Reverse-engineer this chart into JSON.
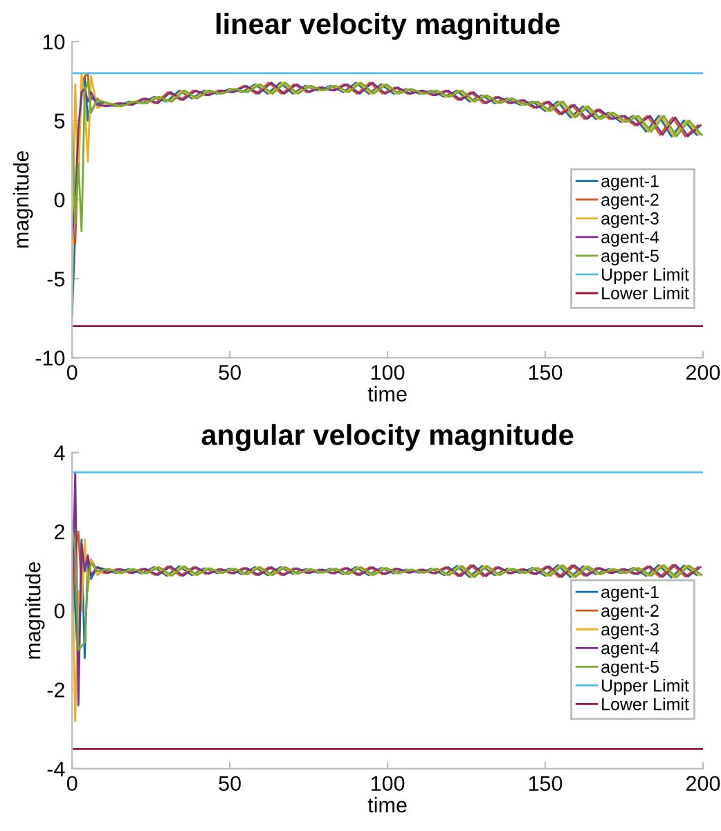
{
  "chart_data": [
    {
      "type": "line",
      "title": "linear velocity magnitude",
      "xlabel": "time",
      "ylabel": "magnitude",
      "xlim": [
        0,
        200
      ],
      "ylim": [
        -10,
        10
      ],
      "xticks": [
        0,
        50,
        100,
        150,
        200
      ],
      "yticks": [
        -10,
        -5,
        0,
        5,
        10
      ],
      "legend": "bottom right",
      "series": [
        {
          "name": "agent-1",
          "color": "#0072bd",
          "x": [
            0,
            1,
            2,
            3,
            4,
            5,
            6,
            8,
            10,
            14,
            18,
            22,
            26,
            30,
            34,
            38,
            42,
            46,
            50,
            54,
            58,
            62,
            66,
            70,
            74,
            78,
            82,
            86,
            90,
            94,
            98,
            102,
            106,
            110,
            114,
            118,
            122,
            126,
            130,
            134,
            138,
            142,
            146,
            150,
            154,
            158,
            162,
            166,
            170,
            174,
            178,
            182,
            186,
            190,
            194,
            198
          ],
          "values": [
            -7.3,
            -2,
            4,
            6.5,
            7.8,
            5,
            6.5,
            6.1,
            6.1,
            5.9,
            6.2,
            6.1,
            6.5,
            6.2,
            6.9,
            6.4,
            6.9,
            6.7,
            7.0,
            6.8,
            7.3,
            6.7,
            7.4,
            6.7,
            7.2,
            6.9,
            7.2,
            6.8,
            7.4,
            6.7,
            7.3,
            6.7,
            7.0,
            6.7,
            6.9,
            6.5,
            6.9,
            6.2,
            6.6,
            6.1,
            6.4,
            6.0,
            6.2,
            5.6,
            6.2,
            5.2,
            5.9,
            5.1,
            5.5,
            4.9,
            5.3,
            4.3,
            5.3,
            4.0,
            5.0,
            4.1
          ]
        },
        {
          "name": "agent-2",
          "color": "#d95319",
          "x": [
            0,
            1,
            2,
            3,
            4,
            5,
            6,
            8,
            10.4,
            14.4,
            18.4,
            22.4,
            26.4,
            30.4,
            34.4,
            38.4,
            42.4,
            46.4,
            50.4,
            54.4,
            58.4,
            62.4,
            66.4,
            70.4,
            74.4,
            78.4,
            82.4,
            86.4,
            90.4,
            94.4,
            98.4,
            102.4,
            106.4,
            110.4,
            114.4,
            118.4,
            122.4,
            126.4,
            130.4,
            134.4,
            138.4,
            142.4,
            146.4,
            150.4,
            154.4,
            158.4,
            162.4,
            166.4,
            170.4,
            174.4,
            178.4,
            182.4,
            186.4,
            190.4,
            194.4,
            198.4
          ],
          "values": [
            -2.5,
            -2.8,
            3,
            7,
            7.8,
            8,
            5.5,
            6.4,
            5.9,
            6.1,
            6.0,
            6.4,
            6.1,
            6.8,
            6.3,
            6.9,
            6.6,
            6.9,
            6.8,
            7.2,
            6.7,
            7.4,
            6.7,
            7.3,
            6.8,
            7.1,
            6.9,
            7.3,
            6.7,
            7.4,
            6.7,
            7.1,
            6.7,
            6.9,
            6.6,
            6.9,
            6.3,
            6.8,
            6.1,
            6.5,
            6.1,
            6.3,
            5.8,
            6.2,
            5.4,
            6.0,
            5.1,
            5.7,
            5.1,
            5.3,
            4.7,
            5.3,
            4.1,
            5.2,
            4.0,
            4.7
          ]
        },
        {
          "name": "agent-3",
          "color": "#edb120",
          "x": [
            0,
            1,
            2,
            3,
            4,
            5,
            6,
            8,
            10.8,
            14.8,
            18.8,
            22.8,
            26.8,
            30.8,
            34.8,
            38.8,
            42.8,
            46.8,
            50.8,
            54.8,
            58.8,
            62.8,
            66.8,
            70.8,
            74.8,
            78.8,
            82.8,
            86.8,
            90.8,
            94.8,
            98.8,
            102.8,
            106.8,
            110.8,
            114.8,
            118.8,
            122.8,
            126.8,
            130.8,
            134.8,
            138.8,
            142.8,
            146.8,
            150.8,
            154.8,
            158.8,
            162.8,
            166.8,
            170.8,
            174.8,
            178.8,
            182.8,
            186.8,
            190.8,
            194.8,
            198.8
          ],
          "values": [
            -6.5,
            7.3,
            1,
            8,
            6,
            2.4,
            7.8,
            5.8,
            6.1,
            5.9,
            6.2,
            6.1,
            6.5,
            6.2,
            6.9,
            6.4,
            6.9,
            6.7,
            7.0,
            6.8,
            7.3,
            6.7,
            7.4,
            6.7,
            7.2,
            6.9,
            7.2,
            6.8,
            7.4,
            6.7,
            7.3,
            6.7,
            7.0,
            6.7,
            6.9,
            6.5,
            6.9,
            6.2,
            6.6,
            6.1,
            6.4,
            6.0,
            6.2,
            5.6,
            6.2,
            5.2,
            5.9,
            5.1,
            5.5,
            4.9,
            5.3,
            4.3,
            5.3,
            4.0,
            5.0,
            4.1
          ]
        },
        {
          "name": "agent-4",
          "color": "#7e2f8e",
          "x": [
            0,
            1,
            2,
            3,
            4,
            5,
            6,
            8,
            11.2,
            15.2,
            19.2,
            23.2,
            27.2,
            31.2,
            35.2,
            39.2,
            43.2,
            47.2,
            51.2,
            55.2,
            59.2,
            63.2,
            67.2,
            71.2,
            75.2,
            79.2,
            83.2,
            87.2,
            91.2,
            95.2,
            99.2,
            103.2,
            107.2,
            111.2,
            115.2,
            119.2,
            123.2,
            127.2,
            131.2,
            135.2,
            139.2,
            143.2,
            147.2,
            151.2,
            155.2,
            159.2,
            163.2,
            167.2,
            171.2,
            175.2,
            179.2,
            183.2,
            187.2,
            191.2,
            195.2,
            199.2
          ],
          "values": [
            -2.5,
            0,
            4.5,
            6.8,
            7,
            6.2,
            6.8,
            6.0,
            5.9,
            6.1,
            6.0,
            6.4,
            6.1,
            6.8,
            6.3,
            6.9,
            6.6,
            6.9,
            6.8,
            7.2,
            6.7,
            7.4,
            6.7,
            7.3,
            6.8,
            7.1,
            6.9,
            7.3,
            6.7,
            7.4,
            6.7,
            7.1,
            6.7,
            6.9,
            6.6,
            6.9,
            6.3,
            6.8,
            6.1,
            6.5,
            6.1,
            6.3,
            5.8,
            6.2,
            5.4,
            6.0,
            5.1,
            5.7,
            5.1,
            5.3,
            4.7,
            5.3,
            4.1,
            5.2,
            4.0,
            4.7
          ]
        },
        {
          "name": "agent-5",
          "color": "#77ac30",
          "x": [
            0,
            1,
            2,
            3,
            4,
            5,
            6,
            8,
            11.6,
            15.6,
            19.6,
            23.6,
            27.6,
            31.6,
            35.6,
            39.6,
            43.6,
            47.6,
            51.6,
            55.6,
            59.6,
            63.6,
            67.6,
            71.6,
            75.6,
            79.6,
            83.6,
            87.6,
            91.6,
            95.6,
            99.6,
            103.6,
            107.6,
            111.6,
            115.6,
            119.6,
            123.6,
            127.6,
            131.6,
            135.6,
            139.6,
            143.6,
            147.6,
            151.6,
            155.6,
            159.6,
            163.6,
            167.6,
            171.6,
            175.6,
            179.6,
            183.6,
            187.6,
            191.6,
            195.6,
            199.6
          ],
          "values": [
            4.8,
            -1.5,
            2.3,
            -2,
            6.8,
            7.5,
            5.5,
            6.3,
            6.1,
            5.9,
            6.2,
            6.1,
            6.5,
            6.2,
            6.9,
            6.4,
            6.9,
            6.7,
            7.0,
            6.8,
            7.3,
            6.7,
            7.4,
            6.7,
            7.2,
            6.9,
            7.2,
            6.8,
            7.4,
            6.7,
            7.3,
            6.7,
            7.0,
            6.7,
            6.9,
            6.5,
            6.9,
            6.2,
            6.6,
            6.1,
            6.4,
            6.0,
            6.2,
            5.6,
            6.2,
            5.2,
            5.9,
            5.1,
            5.5,
            4.9,
            5.3,
            4.3,
            5.3,
            4.0,
            5.0,
            4.1
          ]
        },
        {
          "name": "Upper Limit",
          "color": "#4dbeee",
          "x": [
            0,
            200
          ],
          "values": [
            8,
            8
          ]
        },
        {
          "name": "Lower Limit",
          "color": "#a2142f",
          "x": [
            0,
            200
          ],
          "values": [
            -8,
            -8
          ]
        }
      ]
    },
    {
      "type": "line",
      "title": "angular velocity magnitude",
      "xlabel": "time",
      "ylabel": "magnitude",
      "xlim": [
        0,
        200
      ],
      "ylim": [
        -4,
        4
      ],
      "xticks": [
        0,
        50,
        100,
        150,
        200
      ],
      "yticks": [
        -4,
        -2,
        0,
        2,
        4
      ],
      "legend": "bottom right",
      "series": [
        {
          "name": "agent-1",
          "color": "#0072bd",
          "x": [
            0,
            1,
            2,
            3,
            4,
            5,
            6,
            8,
            10,
            14,
            18,
            22,
            26,
            30,
            34,
            38,
            42,
            46,
            50,
            54,
            58,
            62,
            66,
            70,
            74,
            78,
            82,
            86,
            90,
            94,
            98,
            102,
            106,
            110,
            114,
            118,
            122,
            126,
            130,
            134,
            138,
            142,
            146,
            150,
            154,
            158,
            162,
            166,
            170,
            174,
            178,
            182,
            186,
            190,
            194,
            198
          ],
          "values": [
            2.3,
            0,
            -1.5,
            1.8,
            -1.2,
            1.3,
            0.8,
            1.1,
            1.05,
            0.95,
            1.05,
            0.94,
            1.1,
            0.88,
            1.12,
            0.9,
            1.07,
            0.95,
            1.06,
            0.92,
            1.1,
            0.9,
            1.1,
            0.93,
            1.05,
            0.96,
            1.06,
            0.92,
            1.1,
            0.9,
            1.08,
            0.94,
            1.04,
            0.96,
            1.06,
            0.9,
            1.13,
            0.85,
            1.13,
            0.9,
            1.06,
            0.95,
            1.08,
            0.88,
            1.15,
            0.85,
            1.12,
            0.92,
            1.05,
            0.95,
            1.08,
            0.88,
            1.15,
            0.84,
            1.14,
            0.9
          ]
        },
        {
          "name": "agent-2",
          "color": "#d95319",
          "x": [
            0,
            1,
            2,
            3,
            4,
            5,
            6,
            8,
            10.4,
            14.4,
            18.4,
            22.4,
            26.4,
            30.4,
            34.4,
            38.4,
            42.4,
            46.4,
            50.4,
            54.4,
            58.4,
            62.4,
            66.4,
            70.4,
            74.4,
            78.4,
            82.4,
            86.4,
            90.4,
            94.4,
            98.4,
            102.4,
            106.4,
            110.4,
            114.4,
            118.4,
            122.4,
            126.4,
            130.4,
            134.4,
            138.4,
            142.4,
            146.4,
            150.4,
            154.4,
            158.4,
            162.4,
            166.4,
            170.4,
            174.4,
            178.4,
            182.4,
            186.4,
            190.4,
            194.4,
            198.4
          ],
          "values": [
            -0.3,
            1.5,
            2.0,
            0.5,
            1.6,
            0.6,
            1.3,
            1.0,
            0.95,
            1.05,
            0.95,
            1.06,
            0.9,
            1.12,
            0.88,
            1.1,
            0.93,
            1.05,
            0.94,
            1.08,
            0.9,
            1.1,
            0.9,
            1.07,
            0.95,
            1.04,
            0.94,
            1.08,
            0.9,
            1.1,
            0.92,
            1.06,
            0.96,
            1.04,
            0.94,
            1.1,
            0.87,
            1.15,
            0.87,
            1.1,
            0.94,
            1.05,
            0.92,
            1.12,
            0.85,
            1.15,
            0.88,
            1.08,
            0.95,
            1.05,
            0.92,
            1.12,
            0.85,
            1.16,
            0.86,
            1.1
          ]
        },
        {
          "name": "agent-3",
          "color": "#edb120",
          "x": [
            0,
            1,
            2,
            3,
            4,
            5,
            6,
            8,
            10.8,
            14.8,
            18.8,
            22.8,
            26.8,
            30.8,
            34.8,
            38.8,
            42.8,
            46.8,
            50.8,
            54.8,
            58.8,
            62.8,
            66.8,
            70.8,
            74.8,
            78.8,
            82.8,
            86.8,
            90.8,
            94.8,
            98.8,
            102.8,
            106.8,
            110.8,
            114.8,
            118.8,
            122.8,
            126.8,
            130.8,
            134.8,
            138.8,
            142.8,
            146.8,
            150.8,
            154.8,
            158.8,
            162.8,
            166.8,
            170.8,
            174.8,
            178.8,
            182.8,
            186.8,
            190.8,
            194.8,
            198.8
          ],
          "values": [
            1.5,
            -2.8,
            0.5,
            0,
            1.8,
            0.5,
            1.3,
            0.9,
            1.05,
            0.95,
            1.05,
            0.94,
            1.1,
            0.88,
            1.12,
            0.9,
            1.07,
            0.95,
            1.06,
            0.92,
            1.1,
            0.9,
            1.1,
            0.93,
            1.05,
            0.96,
            1.06,
            0.92,
            1.1,
            0.9,
            1.08,
            0.94,
            1.04,
            0.96,
            1.06,
            0.9,
            1.13,
            0.85,
            1.13,
            0.9,
            1.06,
            0.95,
            1.08,
            0.88,
            1.15,
            0.85,
            1.12,
            0.92,
            1.05,
            0.95,
            1.08,
            0.88,
            1.15,
            0.84,
            1.14,
            0.9
          ]
        },
        {
          "name": "agent-4",
          "color": "#7e2f8e",
          "x": [
            0,
            1,
            2,
            3,
            4,
            5,
            6,
            8,
            11.2,
            15.2,
            19.2,
            23.2,
            27.2,
            31.2,
            35.2,
            39.2,
            43.2,
            47.2,
            51.2,
            55.2,
            59.2,
            63.2,
            67.2,
            71.2,
            75.2,
            79.2,
            83.2,
            87.2,
            91.2,
            95.2,
            99.2,
            103.2,
            107.2,
            111.2,
            115.2,
            119.2,
            123.2,
            127.2,
            131.2,
            135.2,
            139.2,
            143.2,
            147.2,
            151.2,
            155.2,
            159.2,
            163.2,
            167.2,
            171.2,
            175.2,
            179.2,
            183.2,
            187.2,
            191.2,
            195.2,
            199.2
          ],
          "values": [
            0,
            3.5,
            -2.4,
            1.7,
            1.0,
            1.4,
            0.9,
            1.1,
            0.95,
            1.05,
            0.95,
            1.06,
            0.9,
            1.12,
            0.88,
            1.1,
            0.93,
            1.05,
            0.94,
            1.08,
            0.9,
            1.1,
            0.9,
            1.07,
            0.95,
            1.04,
            0.94,
            1.08,
            0.9,
            1.1,
            0.92,
            1.06,
            0.96,
            1.04,
            0.94,
            1.1,
            0.87,
            1.15,
            0.87,
            1.1,
            0.94,
            1.05,
            0.92,
            1.12,
            0.85,
            1.15,
            0.88,
            1.08,
            0.95,
            1.05,
            0.92,
            1.12,
            0.85,
            1.16,
            0.86,
            1.1
          ]
        },
        {
          "name": "agent-5",
          "color": "#77ac30",
          "x": [
            0,
            1,
            2,
            3,
            4,
            5,
            6,
            8,
            11.6,
            15.6,
            19.6,
            23.6,
            27.6,
            31.6,
            35.6,
            39.6,
            43.6,
            47.6,
            51.6,
            55.6,
            59.6,
            63.6,
            67.6,
            71.6,
            75.6,
            79.6,
            83.6,
            87.6,
            91.6,
            95.6,
            99.6,
            103.6,
            107.6,
            111.6,
            115.6,
            119.6,
            123.6,
            127.6,
            131.6,
            135.6,
            139.6,
            143.6,
            147.6,
            151.6,
            155.6,
            159.6,
            163.6,
            167.6,
            171.6,
            175.6,
            179.6,
            183.6,
            187.6,
            191.6,
            195.6,
            199.6
          ],
          "values": [
            2.1,
            1.5,
            -1.0,
            -0.9,
            -0.8,
            0.8,
            1.2,
            1.0,
            1.05,
            0.95,
            1.05,
            0.94,
            1.1,
            0.88,
            1.12,
            0.9,
            1.07,
            0.95,
            1.06,
            0.92,
            1.1,
            0.9,
            1.1,
            0.93,
            1.05,
            0.96,
            1.06,
            0.92,
            1.1,
            0.9,
            1.08,
            0.94,
            1.04,
            0.96,
            1.06,
            0.9,
            1.13,
            0.85,
            1.13,
            0.9,
            1.06,
            0.95,
            1.08,
            0.88,
            1.15,
            0.85,
            1.12,
            0.92,
            1.05,
            0.95,
            1.08,
            0.88,
            1.15,
            0.84,
            1.14,
            0.9
          ]
        },
        {
          "name": "Upper Limit",
          "color": "#4dbeee",
          "x": [
            0,
            200
          ],
          "values": [
            3.5,
            3.5
          ]
        },
        {
          "name": "Lower Limit",
          "color": "#a2142f",
          "x": [
            0,
            200
          ],
          "values": [
            -3.5,
            -3.5
          ]
        }
      ]
    }
  ]
}
